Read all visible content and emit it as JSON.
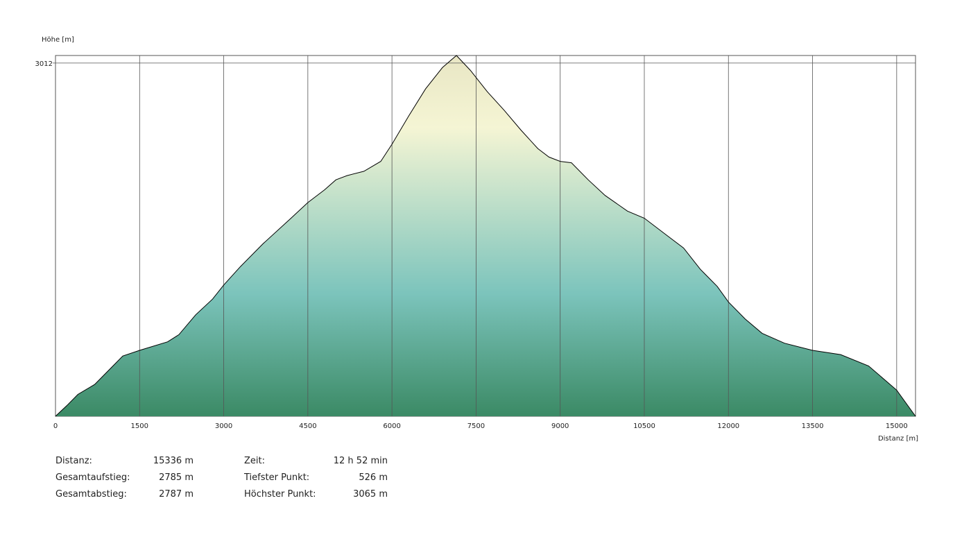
{
  "chart_data": {
    "type": "area",
    "ylabel": "Höhe [m]",
    "xlabel": "Distanz [m]",
    "xlim": [
      0,
      15336
    ],
    "ylim": [
      526,
      3065
    ],
    "x_ticks": [
      0,
      1500,
      3000,
      4500,
      6000,
      7500,
      9000,
      10500,
      12000,
      13500,
      15000
    ],
    "y_ticks": [
      3012
    ],
    "grid": true,
    "fill_gradient": [
      "#f5f5d4",
      "#7cc4bc",
      "#3b8a65"
    ],
    "line_color": "#000000",
    "series": [
      {
        "x": [
          0,
          200,
          400,
          700,
          1000,
          1200,
          1500,
          2000,
          2200,
          2500,
          2800,
          3000,
          3300,
          3700,
          4200,
          4500,
          4800,
          5000,
          5200,
          5500,
          5800,
          6000,
          6300,
          6600,
          6900,
          7150,
          7400,
          7700,
          8000,
          8300,
          8600,
          8800,
          9000,
          9200,
          9500,
          9800,
          10200,
          10500,
          10900,
          11200,
          11500,
          11800,
          12000,
          12300,
          12600,
          13000,
          13500,
          14000,
          14500,
          15000,
          15336
        ],
        "y": [
          526,
          600,
          680,
          750,
          870,
          950,
          990,
          1050,
          1100,
          1240,
          1350,
          1450,
          1580,
          1740,
          1920,
          2030,
          2120,
          2190,
          2220,
          2250,
          2320,
          2440,
          2640,
          2830,
          2980,
          3065,
          2960,
          2810,
          2680,
          2540,
          2410,
          2350,
          2320,
          2310,
          2190,
          2080,
          1970,
          1920,
          1800,
          1710,
          1560,
          1440,
          1330,
          1210,
          1110,
          1040,
          990,
          960,
          880,
          710,
          526
        ]
      }
    ]
  },
  "stats": [
    {
      "label": "Distanz:",
      "value": "15336 m"
    },
    {
      "label": "Gesamtaufstieg:",
      "value": "2785 m"
    },
    {
      "label": "Gesamtabstieg:",
      "value": "2787 m"
    },
    {
      "label": "Zeit:",
      "value": "12 h 52 min"
    },
    {
      "label": "Tiefster Punkt:",
      "value": "526 m"
    },
    {
      "label": "Höchster Punkt:",
      "value": "3065 m"
    }
  ]
}
